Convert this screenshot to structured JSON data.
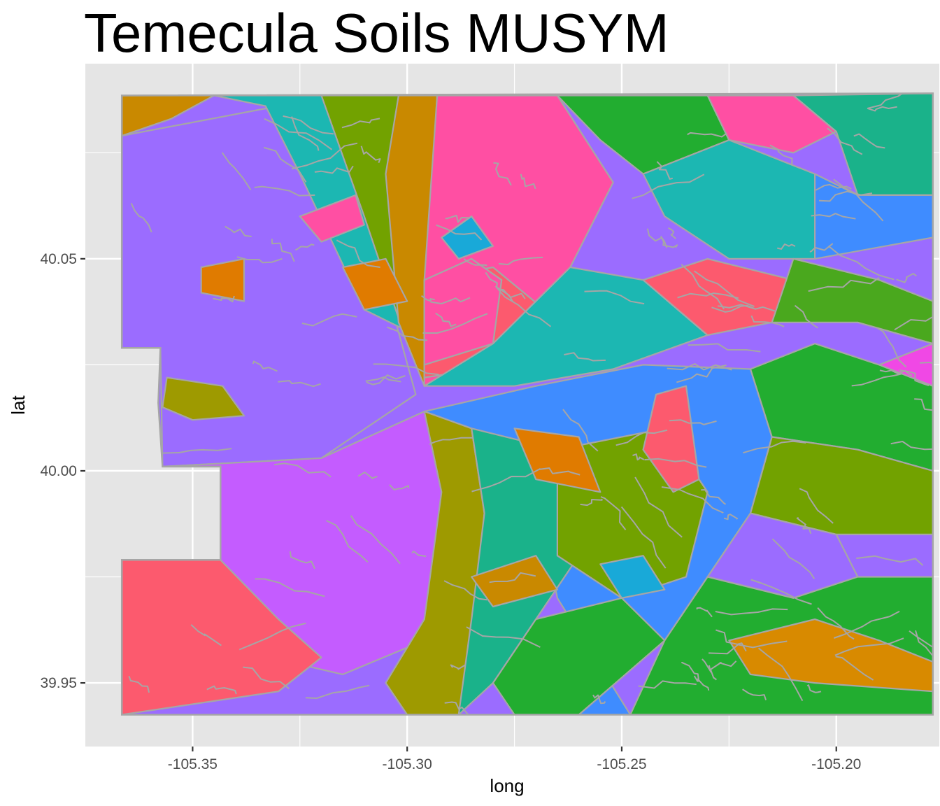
{
  "chart_data": {
    "type": "map",
    "title": "Temecula Soils MUSYM",
    "xlabel": "long",
    "ylabel": "lat",
    "xlim": [
      -105.375,
      -105.176
    ],
    "ylim": [
      39.935,
      40.096
    ],
    "x_ticks": [
      -105.35,
      -105.3,
      -105.25,
      -105.2
    ],
    "x_tick_labels": [
      "-105.35",
      "-105.30",
      "-105.25",
      "-105.20"
    ],
    "y_ticks": [
      39.95,
      40.0,
      40.05
    ],
    "y_tick_labels": [
      "39.95",
      "40.00",
      "40.05"
    ],
    "grid": true,
    "legend": "none",
    "colors": {
      "panel_background": "#e5e5e5",
      "grid": "#ffffff",
      "polygon_outline": "#a6a6a6"
    },
    "palette": [
      "#9b6cff",
      "#c45cff",
      "#ff4fa3",
      "#fc5a6e",
      "#e07b00",
      "#c98900",
      "#9e9a00",
      "#72a200",
      "#22ad30",
      "#1ab28a",
      "#1cb7b2",
      "#19a9d8",
      "#3f8cff",
      "#f048e5",
      "#d88a00",
      "#4aa81e"
    ],
    "boundary": [
      [
        -105.3665,
        40.0885
      ],
      [
        -105.1775,
        40.089
      ],
      [
        -105.1775,
        39.9425
      ],
      [
        -105.3665,
        39.9425
      ],
      [
        -105.3665,
        39.979
      ],
      [
        -105.3435,
        39.979
      ],
      [
        -105.3435,
        40.001
      ],
      [
        -105.357,
        40.001
      ],
      [
        -105.358,
        40.016
      ],
      [
        -105.3575,
        40.029
      ],
      [
        -105.3665,
        40.029
      ]
    ],
    "regions": [
      {
        "color": "#9b6cff",
        "polygon": [
          [
            -105.3665,
            40.079
          ],
          [
            -105.33,
            40.086
          ],
          [
            -105.31,
            40.062
          ],
          [
            -105.298,
            40.018
          ],
          [
            -105.32,
            40.003
          ],
          [
            -105.357,
            40.001
          ],
          [
            -105.3575,
            40.029
          ],
          [
            -105.3665,
            40.029
          ]
        ]
      },
      {
        "color": "#c45cff",
        "polygon": [
          [
            -105.357,
            40.001
          ],
          [
            -105.32,
            40.003
          ],
          [
            -105.296,
            40.014
          ],
          [
            -105.292,
            39.995
          ],
          [
            -105.296,
            39.96
          ],
          [
            -105.315,
            39.952
          ],
          [
            -105.332,
            39.956
          ],
          [
            -105.3435,
            39.979
          ],
          [
            -105.3435,
            40.001
          ]
        ]
      },
      {
        "color": "#fc5a6e",
        "polygon": [
          [
            -105.3665,
            39.979
          ],
          [
            -105.3435,
            39.979
          ],
          [
            -105.33,
            39.965
          ],
          [
            -105.32,
            39.956
          ],
          [
            -105.33,
            39.948
          ],
          [
            -105.3665,
            39.9425
          ]
        ]
      },
      {
        "color": "#c98900",
        "polygon": [
          [
            -105.3665,
            40.0885
          ],
          [
            -105.345,
            40.0885
          ],
          [
            -105.355,
            40.083
          ],
          [
            -105.3665,
            40.079
          ]
        ]
      },
      {
        "color": "#1cb7b2",
        "polygon": [
          [
            -105.345,
            40.0885
          ],
          [
            -105.32,
            40.0885
          ],
          [
            -105.302,
            40.06
          ],
          [
            -105.298,
            40.032
          ],
          [
            -105.31,
            40.038
          ],
          [
            -105.325,
            40.07
          ],
          [
            -105.333,
            40.086
          ]
        ]
      },
      {
        "color": "#72a200",
        "polygon": [
          [
            -105.32,
            40.0885
          ],
          [
            -105.302,
            40.0885
          ],
          [
            -105.296,
            40.05
          ],
          [
            -105.296,
            40.025
          ],
          [
            -105.3,
            40.03
          ],
          [
            -105.31,
            40.06
          ]
        ]
      },
      {
        "color": "#c98900",
        "polygon": [
          [
            -105.302,
            40.0885
          ],
          [
            -105.293,
            40.0885
          ],
          [
            -105.296,
            40.04
          ],
          [
            -105.296,
            40.02
          ],
          [
            -105.302,
            40.035
          ],
          [
            -105.305,
            40.07
          ]
        ]
      },
      {
        "color": "#ff4fa3",
        "polygon": [
          [
            -105.293,
            40.0885
          ],
          [
            -105.265,
            40.0885
          ],
          [
            -105.252,
            40.068
          ],
          [
            -105.262,
            40.048
          ],
          [
            -105.28,
            40.03
          ],
          [
            -105.296,
            40.02
          ],
          [
            -105.296,
            40.045
          ]
        ]
      },
      {
        "color": "#fc5a6e",
        "polygon": [
          [
            -105.296,
            40.045
          ],
          [
            -105.28,
            40.048
          ],
          [
            -105.268,
            40.038
          ],
          [
            -105.276,
            40.025
          ],
          [
            -105.296,
            40.022
          ]
        ]
      },
      {
        "color": "#1cb7b2",
        "polygon": [
          [
            -105.296,
            40.02
          ],
          [
            -105.28,
            40.03
          ],
          [
            -105.262,
            40.048
          ],
          [
            -105.245,
            40.045
          ],
          [
            -105.23,
            40.032
          ],
          [
            -105.252,
            40.024
          ],
          [
            -105.275,
            40.02
          ]
        ]
      },
      {
        "color": "#3f8cff",
        "polygon": [
          [
            -105.296,
            40.014
          ],
          [
            -105.27,
            40.02
          ],
          [
            -105.245,
            40.025
          ],
          [
            -105.22,
            40.024
          ],
          [
            -105.215,
            40.008
          ],
          [
            -105.22,
            39.99
          ],
          [
            -105.24,
            39.96
          ],
          [
            -105.26,
            39.9425
          ],
          [
            -105.248,
            39.9425
          ],
          [
            -105.265,
            39.97
          ],
          [
            -105.27,
            39.995
          ],
          [
            -105.285,
            40.01
          ]
        ]
      },
      {
        "color": "#9e9a00",
        "polygon": [
          [
            -105.296,
            40.014
          ],
          [
            -105.285,
            40.01
          ],
          [
            -105.282,
            39.99
          ],
          [
            -105.285,
            39.96
          ],
          [
            -105.288,
            39.9425
          ],
          [
            -105.3,
            39.9425
          ],
          [
            -105.305,
            39.95
          ],
          [
            -105.296,
            39.965
          ],
          [
            -105.292,
            39.995
          ]
        ]
      },
      {
        "color": "#1ab28a",
        "polygon": [
          [
            -105.285,
            40.01
          ],
          [
            -105.265,
            40.005
          ],
          [
            -105.26,
            39.98
          ],
          [
            -105.27,
            39.965
          ],
          [
            -105.28,
            39.95
          ],
          [
            -105.288,
            39.9425
          ],
          [
            -105.285,
            39.965
          ],
          [
            -105.282,
            39.99
          ]
        ]
      },
      {
        "color": "#72a200",
        "polygon": [
          [
            -105.265,
            40.005
          ],
          [
            -105.24,
            40.01
          ],
          [
            -105.23,
            39.995
          ],
          [
            -105.235,
            39.975
          ],
          [
            -105.25,
            39.97
          ],
          [
            -105.265,
            39.98
          ]
        ]
      },
      {
        "color": "#22ad30",
        "polygon": [
          [
            -105.28,
            39.95
          ],
          [
            -105.27,
            39.965
          ],
          [
            -105.25,
            39.97
          ],
          [
            -105.24,
            39.96
          ],
          [
            -105.26,
            39.9425
          ],
          [
            -105.275,
            39.9425
          ]
        ]
      },
      {
        "color": "#ff4fa3",
        "polygon": [
          [
            -105.296,
            40.045
          ],
          [
            -105.296,
            40.025
          ],
          [
            -105.28,
            40.03
          ],
          [
            -105.278,
            40.045
          ],
          [
            -105.285,
            40.05
          ]
        ]
      },
      {
        "color": "#22ad30",
        "polygon": [
          [
            -105.265,
            40.0885
          ],
          [
            -105.23,
            40.0885
          ],
          [
            -105.225,
            40.078
          ],
          [
            -105.245,
            40.07
          ],
          [
            -105.255,
            40.078
          ]
        ]
      },
      {
        "color": "#1cb7b2",
        "polygon": [
          [
            -105.245,
            40.07
          ],
          [
            -105.225,
            40.078
          ],
          [
            -105.205,
            40.07
          ],
          [
            -105.205,
            40.05
          ],
          [
            -105.225,
            40.05
          ],
          [
            -105.24,
            40.06
          ]
        ]
      },
      {
        "color": "#ff4fa3",
        "polygon": [
          [
            -105.23,
            40.0885
          ],
          [
            -105.21,
            40.0885
          ],
          [
            -105.2,
            40.08
          ],
          [
            -105.21,
            40.075
          ],
          [
            -105.225,
            40.078
          ]
        ]
      },
      {
        "color": "#1ab28a",
        "polygon": [
          [
            -105.21,
            40.0885
          ],
          [
            -105.1775,
            40.089
          ],
          [
            -105.1775,
            40.065
          ],
          [
            -105.195,
            40.065
          ],
          [
            -105.2,
            40.08
          ]
        ]
      },
      {
        "color": "#3f8cff",
        "polygon": [
          [
            -105.205,
            40.07
          ],
          [
            -105.195,
            40.065
          ],
          [
            -105.1775,
            40.065
          ],
          [
            -105.1775,
            40.055
          ],
          [
            -105.205,
            40.05
          ]
        ]
      },
      {
        "color": "#fc5a6e",
        "polygon": [
          [
            -105.245,
            40.045
          ],
          [
            -105.23,
            40.05
          ],
          [
            -105.21,
            40.045
          ],
          [
            -105.215,
            40.035
          ],
          [
            -105.23,
            40.032
          ]
        ]
      },
      {
        "color": "#22ad30",
        "polygon": [
          [
            -105.22,
            40.024
          ],
          [
            -105.205,
            40.03
          ],
          [
            -105.19,
            40.025
          ],
          [
            -105.1775,
            40.02
          ],
          [
            -105.1775,
            40.0
          ],
          [
            -105.195,
            40.005
          ],
          [
            -105.215,
            40.008
          ]
        ]
      },
      {
        "color": "#72a200",
        "polygon": [
          [
            -105.215,
            40.008
          ],
          [
            -105.195,
            40.005
          ],
          [
            -105.1775,
            40.0
          ],
          [
            -105.1775,
            39.985
          ],
          [
            -105.2,
            39.985
          ],
          [
            -105.22,
            39.99
          ]
        ]
      },
      {
        "color": "#9b6cff",
        "polygon": [
          [
            -105.22,
            39.99
          ],
          [
            -105.2,
            39.985
          ],
          [
            -105.195,
            39.975
          ],
          [
            -105.21,
            39.97
          ],
          [
            -105.23,
            39.975
          ]
        ]
      },
      {
        "color": "#22ad30",
        "polygon": [
          [
            -105.23,
            39.975
          ],
          [
            -105.21,
            39.97
          ],
          [
            -105.195,
            39.975
          ],
          [
            -105.1775,
            39.975
          ],
          [
            -105.1775,
            39.9425
          ],
          [
            -105.248,
            39.9425
          ],
          [
            -105.24,
            39.96
          ]
        ]
      },
      {
        "color": "#d88a00",
        "polygon": [
          [
            -105.225,
            39.96
          ],
          [
            -105.205,
            39.965
          ],
          [
            -105.19,
            39.96
          ],
          [
            -105.1775,
            39.955
          ],
          [
            -105.1775,
            39.948
          ],
          [
            -105.205,
            39.95
          ],
          [
            -105.22,
            39.952
          ]
        ]
      },
      {
        "color": "#4aa81e",
        "polygon": [
          [
            -105.21,
            40.05
          ],
          [
            -105.19,
            40.045
          ],
          [
            -105.1775,
            40.04
          ],
          [
            -105.1775,
            40.03
          ],
          [
            -105.195,
            40.035
          ],
          [
            -105.215,
            40.035
          ]
        ]
      },
      {
        "color": "#f048e5",
        "polygon": [
          [
            -105.19,
            40.025
          ],
          [
            -105.1775,
            40.03
          ],
          [
            -105.1775,
            40.02
          ]
        ]
      },
      {
        "color": "#e07b00",
        "polygon": [
          [
            -105.315,
            40.048
          ],
          [
            -105.305,
            40.05
          ],
          [
            -105.3,
            40.04
          ],
          [
            -105.31,
            40.038
          ]
        ]
      },
      {
        "color": "#e07b00",
        "polygon": [
          [
            -105.348,
            40.048
          ],
          [
            -105.338,
            40.05
          ],
          [
            -105.338,
            40.04
          ],
          [
            -105.348,
            40.042
          ]
        ]
      },
      {
        "color": "#9e9a00",
        "polygon": [
          [
            -105.356,
            40.022
          ],
          [
            -105.343,
            40.02
          ],
          [
            -105.338,
            40.013
          ],
          [
            -105.35,
            40.012
          ],
          [
            -105.357,
            40.015
          ]
        ]
      },
      {
        "color": "#ff4fa3",
        "polygon": [
          [
            -105.325,
            40.06
          ],
          [
            -105.312,
            40.065
          ],
          [
            -105.31,
            40.058
          ],
          [
            -105.32,
            40.054
          ]
        ]
      },
      {
        "color": "#e07b00",
        "polygon": [
          [
            -105.275,
            40.01
          ],
          [
            -105.26,
            40.008
          ],
          [
            -105.255,
            39.995
          ],
          [
            -105.27,
            39.998
          ]
        ]
      },
      {
        "color": "#fc5a6e",
        "polygon": [
          [
            -105.242,
            40.018
          ],
          [
            -105.235,
            40.02
          ],
          [
            -105.232,
            39.998
          ],
          [
            -105.238,
            39.995
          ],
          [
            -105.245,
            40.005
          ]
        ]
      },
      {
        "color": "#19a9d8",
        "polygon": [
          [
            -105.255,
            39.978
          ],
          [
            -105.245,
            39.98
          ],
          [
            -105.24,
            39.972
          ],
          [
            -105.25,
            39.97
          ]
        ]
      },
      {
        "color": "#c98900",
        "polygon": [
          [
            -105.285,
            39.975
          ],
          [
            -105.27,
            39.98
          ],
          [
            -105.265,
            39.972
          ],
          [
            -105.28,
            39.968
          ]
        ]
      },
      {
        "color": "#19a9d8",
        "polygon": [
          [
            -105.292,
            40.055
          ],
          [
            -105.285,
            40.06
          ],
          [
            -105.28,
            40.053
          ],
          [
            -105.288,
            40.05
          ]
        ]
      }
    ]
  }
}
